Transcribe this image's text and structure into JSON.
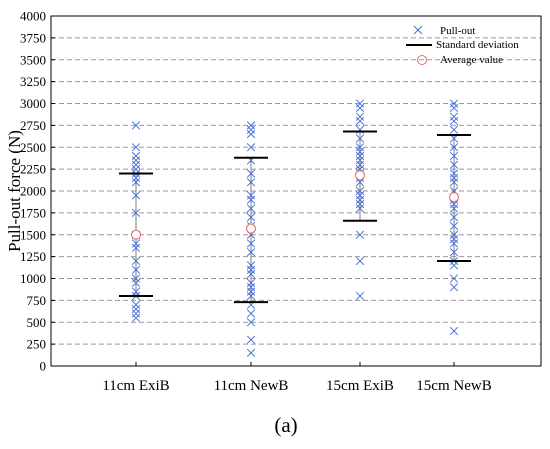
{
  "chart_data": {
    "type": "scatter",
    "caption": "(a)",
    "ylabel": "Pull-out force (N)",
    "xlabel": "",
    "ylim": [
      0,
      4000
    ],
    "ytick_step": 250,
    "grid": "horizontal-dashed",
    "legend_position": "top-right",
    "legend": {
      "pullout": "Pull-out",
      "std": "Standard deviation",
      "avg": "Average value"
    },
    "colors": {
      "pullout": "#4a6fd8",
      "std": "#000000",
      "whisker": "#7f7f7f",
      "avg": "#e07070",
      "grid": "#9a9a9a"
    },
    "categories": [
      "11cm ExiB",
      "11cm NewB",
      "15cm ExiB",
      "15cm NewB"
    ],
    "groups": [
      {
        "category": "11cm ExiB",
        "average": 1500,
        "std_upper": 2200,
        "std_lower": 800,
        "points": [
          2750,
          2500,
          2400,
          2350,
          2300,
          2250,
          2200,
          2150,
          2100,
          1950,
          1750,
          1500,
          1400,
          1350,
          1200,
          1100,
          1000,
          950,
          850,
          800,
          700,
          650,
          600,
          550
        ]
      },
      {
        "category": "11cm NewB",
        "average": 1570,
        "std_upper": 2380,
        "std_lower": 730,
        "points": [
          2750,
          2700,
          2650,
          2500,
          2350,
          2200,
          2100,
          1950,
          1900,
          1800,
          1700,
          1600,
          1500,
          1400,
          1300,
          1150,
          1100,
          1050,
          950,
          900,
          850,
          800,
          700,
          600,
          500,
          300,
          150
        ]
      },
      {
        "category": "15cm ExiB",
        "average": 2180,
        "std_upper": 2680,
        "std_lower": 1660,
        "points": [
          3000,
          2950,
          2850,
          2800,
          2700,
          2600,
          2500,
          2450,
          2400,
          2350,
          2300,
          2250,
          2200,
          2150,
          2100,
          2000,
          1950,
          1900,
          1850,
          1800,
          1500,
          1200,
          800
        ]
      },
      {
        "category": "15cm NewB",
        "average": 1930,
        "std_upper": 2640,
        "std_lower": 1200,
        "points": [
          3000,
          2950,
          2850,
          2800,
          2700,
          2600,
          2500,
          2400,
          2300,
          2200,
          2150,
          2100,
          2000,
          1900,
          1850,
          1800,
          1700,
          1600,
          1500,
          1450,
          1400,
          1300,
          1200,
          1150,
          1000,
          900,
          400
        ]
      }
    ]
  }
}
